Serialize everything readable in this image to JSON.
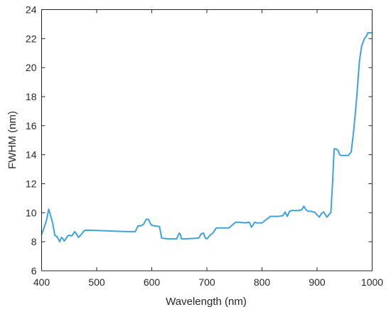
{
  "chart_data": {
    "type": "line",
    "title": "",
    "xlabel": "Wavelength (nm)",
    "ylabel": "FWHM (nm)",
    "xlim": [
      400,
      1000
    ],
    "ylim": [
      6,
      24
    ],
    "xticks": [
      400,
      500,
      600,
      700,
      800,
      900,
      1000
    ],
    "yticks": [
      6,
      8,
      10,
      12,
      14,
      16,
      18,
      20,
      22,
      24
    ],
    "grid": false,
    "legend": "none",
    "line_color": "#3aa3e0",
    "series": [
      {
        "x": [
          400,
          404,
          409,
          413,
          416,
          420,
          424,
          428,
          433,
          436,
          439,
          441,
          444,
          447,
          450,
          455,
          460,
          464,
          467,
          472,
          477,
          480,
          500,
          520,
          540,
          560,
          570,
          575,
          580,
          585,
          590,
          594,
          599,
          604,
          614,
          618,
          630,
          645,
          648,
          650,
          652,
          654,
          660,
          685,
          690,
          694,
          697,
          700,
          707,
          711,
          717,
          720,
          740,
          752,
          757,
          770,
          777,
          781,
          787,
          790,
          800,
          812,
          815,
          818,
          822,
          830,
          838,
          842,
          846,
          850,
          854,
          858,
          866,
          872,
          876,
          880,
          884,
          888,
          895,
          904,
          908,
          912,
          918,
          922,
          925,
          928,
          931,
          934,
          938,
          941,
          944,
          948,
          957,
          962,
          966,
          971,
          977,
          981,
          986,
          990,
          992,
          994,
          998,
          1000
        ],
        "y": [
          8.5,
          8.9,
          9.5,
          10.25,
          9.85,
          9.3,
          8.45,
          8.35,
          8.0,
          8.3,
          8.2,
          8.05,
          8.2,
          8.4,
          8.45,
          8.4,
          8.7,
          8.5,
          8.3,
          8.5,
          8.75,
          8.8,
          8.78,
          8.75,
          8.72,
          8.7,
          8.7,
          9.1,
          9.1,
          9.2,
          9.55,
          9.55,
          9.15,
          9.1,
          9.05,
          8.25,
          8.2,
          8.2,
          8.45,
          8.6,
          8.5,
          8.2,
          8.2,
          8.25,
          8.55,
          8.6,
          8.25,
          8.2,
          8.5,
          8.6,
          8.95,
          8.95,
          8.95,
          9.35,
          9.35,
          9.3,
          9.35,
          9.0,
          9.35,
          9.3,
          9.3,
          9.65,
          9.75,
          9.75,
          9.75,
          9.75,
          9.8,
          10.05,
          9.75,
          10.1,
          10.15,
          10.15,
          10.15,
          10.2,
          10.45,
          10.2,
          10.1,
          10.1,
          10.05,
          9.7,
          9.95,
          10.05,
          9.7,
          9.9,
          10.0,
          12.0,
          14.4,
          14.4,
          14.3,
          14.0,
          13.95,
          13.95,
          13.95,
          14.2,
          15.5,
          17.5,
          20.5,
          21.5,
          22.0,
          22.2,
          22.4,
          22.4,
          22.4,
          22.4
        ]
      }
    ]
  }
}
